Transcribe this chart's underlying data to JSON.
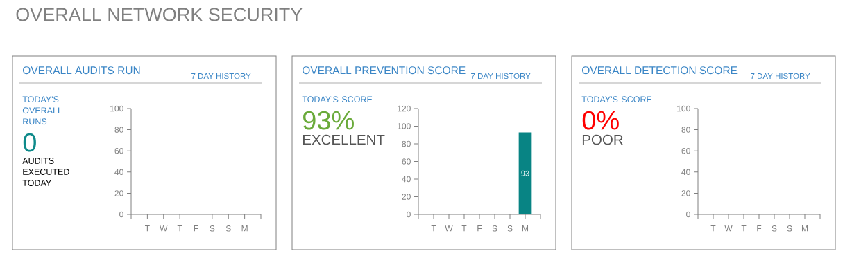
{
  "chart_data": [
    {
      "type": "other",
      "title": "OVERALL NETWORK SECURITY"
    },
    {
      "type": "bar",
      "title": "OVERALL AUDITS RUN",
      "subtitle": "7 DAY HISTORY",
      "annotations": [
        "TODAY'S OVERALL RUNS",
        "0",
        "AUDITS EXECUTED TODAY"
      ],
      "categories": [
        "T",
        "W",
        "T",
        "F",
        "S",
        "S",
        "M"
      ],
      "values": [
        null,
        null,
        null,
        null,
        null,
        null,
        null
      ],
      "ylim": [
        0,
        100
      ],
      "yticks": [
        0,
        20,
        40,
        60,
        80,
        100
      ]
    },
    {
      "type": "bar",
      "title": "OVERALL PREVENTION SCORE",
      "subtitle": "7 DAY HISTORY",
      "annotations": [
        "TODAY'S SCORE",
        "93%",
        "EXCELLENT"
      ],
      "categories": [
        "T",
        "W",
        "T",
        "F",
        "S",
        "S",
        "M"
      ],
      "values": [
        null,
        null,
        null,
        null,
        null,
        null,
        93
      ],
      "color": "#088484",
      "data_labels": true,
      "ylim": [
        0,
        120
      ],
      "yticks": [
        0,
        20,
        40,
        60,
        80,
        100,
        120
      ]
    },
    {
      "type": "bar",
      "title": "OVERALL DETECTION SCORE",
      "subtitle": "7 DAY HISTORY",
      "annotations": [
        "TODAY'S SCORE",
        "0%",
        "POOR"
      ],
      "categories": [
        "T",
        "W",
        "T",
        "F",
        "S",
        "S",
        "M"
      ],
      "values": [
        null,
        null,
        null,
        null,
        null,
        null,
        null
      ],
      "ylim": [
        0,
        100
      ],
      "yticks": [
        0,
        20,
        40,
        60,
        80,
        100
      ]
    }
  ]
}
